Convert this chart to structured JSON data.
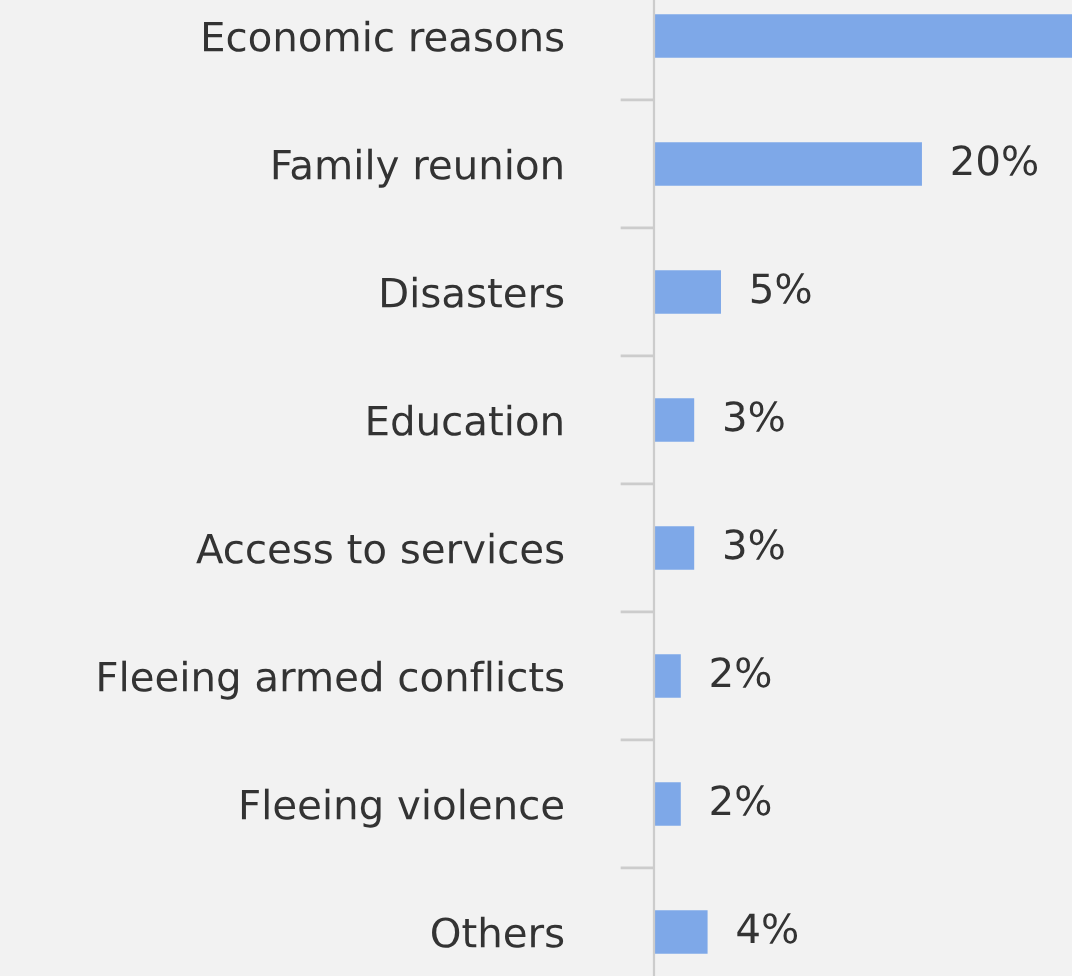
{
  "chart_data": {
    "type": "bar",
    "orientation": "horizontal",
    "categories": [
      "Economic reasons",
      "Family reunion",
      "Disasters",
      "Education",
      "Access to services",
      "Fleeing armed conflicts",
      "Fleeing violence",
      "Others"
    ],
    "values": [
      31.2,
      20,
      5,
      3,
      3,
      2,
      2,
      4
    ],
    "value_labels": [
      null,
      "20%",
      "5%",
      "3%",
      "3%",
      "2%",
      "2%",
      "4%"
    ],
    "color": "#7ea8e8",
    "xlim": [
      0,
      31.2
    ],
    "tick_labels": "y",
    "grid": false,
    "legend": false
  }
}
